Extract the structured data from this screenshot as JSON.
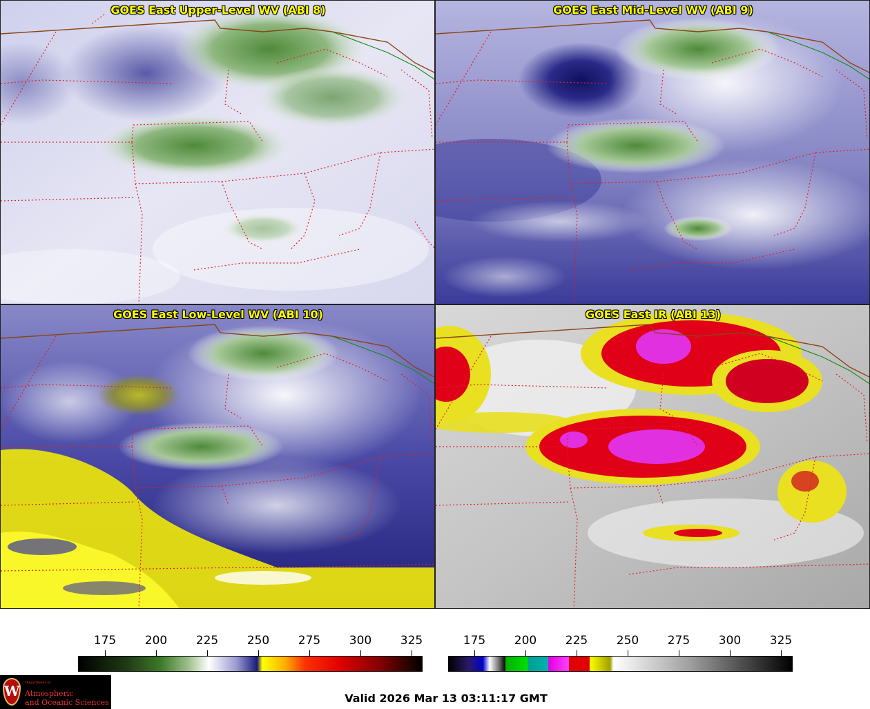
{
  "panels": [
    {
      "title": "GOES East Upper-Level WV (ABI 8)"
    },
    {
      "title": "GOES East Mid-Level WV (ABI 9)"
    },
    {
      "title": "GOES East Low-Level WV (ABI 10)"
    },
    {
      "title": "GOES East IR (ABI 13)"
    }
  ],
  "wv_colorbar": {
    "ticks": [
      "175",
      "200",
      "225",
      "250",
      "275",
      "300",
      "325"
    ],
    "colors": [
      "#000000",
      "#2e6b1f",
      "#ffffff",
      "#1a1a7a",
      "#ffff00",
      "#ff0000",
      "#000000"
    ]
  },
  "ir_colorbar": {
    "ticks": [
      "175",
      "200",
      "225",
      "250",
      "275",
      "300",
      "325"
    ],
    "colors": [
      "#000000",
      "#00aa00",
      "#ff00ff",
      "#ff0000",
      "#ffff00",
      "#ffffff",
      "#000000"
    ]
  },
  "logo": {
    "department": "Department of",
    "line1": "Atmospheric",
    "line2": "and Oceanic Sciences",
    "seal_letter": "W"
  },
  "footer": {
    "valid": "Valid 2026 Mar 13 03:11:17 GMT"
  }
}
